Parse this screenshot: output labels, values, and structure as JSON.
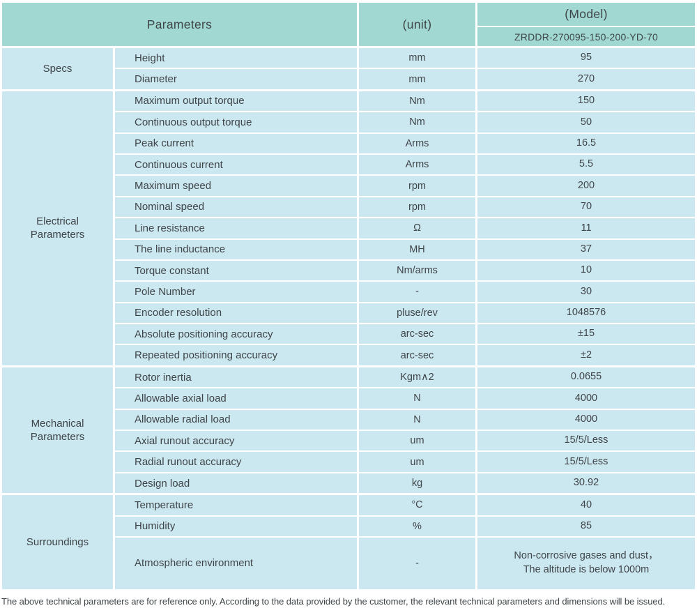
{
  "colors": {
    "header_bg": "#a1d9d2",
    "row_bg": "#cbe7f0",
    "text": "#3f4548",
    "page_bg": "#ffffff"
  },
  "header": {
    "parameters_label": "Parameters",
    "unit_label": "(unit)",
    "model_label": "(Model)",
    "model_value": "ZRDDR-270095-150-200-YD-70"
  },
  "sections": [
    {
      "group": "Specs",
      "rows": [
        {
          "param": "Height",
          "unit": "mm",
          "value": "95"
        },
        {
          "param": "Diameter",
          "unit": "mm",
          "value": "270"
        }
      ]
    },
    {
      "group": "Electrical Parameters",
      "rows": [
        {
          "param": "Maximum output torque",
          "unit": "Nm",
          "value": "150"
        },
        {
          "param": "Continuous output torque",
          "unit": "Nm",
          "value": "50"
        },
        {
          "param": "Peak current",
          "unit": "Arms",
          "value": "16.5"
        },
        {
          "param": "Continuous current",
          "unit": "Arms",
          "value": "5.5"
        },
        {
          "param": "Maximum speed",
          "unit": "rpm",
          "value": "200"
        },
        {
          "param": "Nominal speed",
          "unit": "rpm",
          "value": "70"
        },
        {
          "param": "Line resistance",
          "unit": "Ω",
          "value": "11"
        },
        {
          "param": "The line inductance",
          "unit": "MH",
          "value": "37"
        },
        {
          "param": "Torque constant",
          "unit": "Nm/arms",
          "value": "10"
        },
        {
          "param": "Pole Number",
          "unit": "-",
          "value": "30"
        },
        {
          "param": "Encoder resolution",
          "unit": "pluse/rev",
          "value": "1048576"
        },
        {
          "param": "Absolute positioning accuracy",
          "unit": "arc-sec",
          "value": "±15"
        },
        {
          "param": "Repeated positioning accuracy",
          "unit": "arc-sec",
          "value": "±2"
        }
      ]
    },
    {
      "group": "Mechanical Parameters",
      "rows": [
        {
          "param": "Rotor inertia",
          "unit": "Kgm∧2",
          "value": "0.0655"
        },
        {
          "param": "Allowable axial load",
          "unit": "N",
          "value": "4000"
        },
        {
          "param": "Allowable radial load",
          "unit": "N",
          "value": "4000"
        },
        {
          "param": "Axial runout accuracy",
          "unit": "um",
          "value": "15/5/Less"
        },
        {
          "param": "Radial runout accuracy",
          "unit": "um",
          "value": "15/5/Less"
        },
        {
          "param": "Design load",
          "unit": "kg",
          "value": "30.92"
        }
      ]
    },
    {
      "group": "Surroundings",
      "rows": [
        {
          "param": "Temperature",
          "unit": "°C",
          "value": "40"
        },
        {
          "param": "Humidity",
          "unit": "%",
          "value": "85"
        },
        {
          "param": "Atmospheric environment",
          "unit": "-",
          "value": "Non-corrosive gases and dust，\nThe altitude is below 1000m",
          "tall": true
        }
      ]
    }
  ],
  "footer": "The above technical parameters are for reference only. According to the data provided by the customer, the relevant technical parameters and dimensions will be issued."
}
